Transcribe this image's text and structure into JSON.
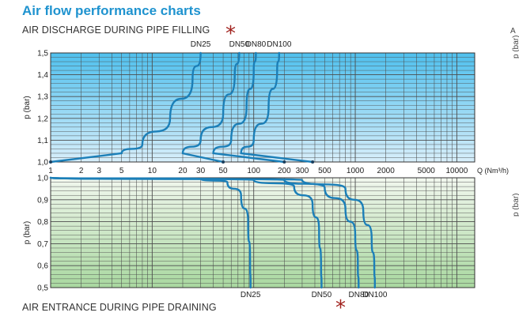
{
  "page": {
    "title": "Air flow performance charts",
    "top_subtitle": "AIR DISCHARGE DURING PIPE FILLING",
    "bottom_subtitle": "AIR ENTRANCE DURING PIPE DRAINING",
    "star_glyph": "*",
    "right_cut_a": "A",
    "right_cut_p_top": "p (bar)",
    "right_cut_p_bottom": "p (bar)"
  },
  "colors": {
    "title": "#1f93cf",
    "curve": "#1b7fb8",
    "star": "#a1231f",
    "grid": "#4d4d4d"
  },
  "chart_data": [
    {
      "type": "line",
      "title": "AIR DISCHARGE DURING PIPE FILLING",
      "ylabel": "p (bar)",
      "xlabel": "Q (Nm³/h)",
      "xscale": "log",
      "xlim": [
        1,
        15000
      ],
      "ylim": [
        1.0,
        1.5
      ],
      "xticks": [
        {
          "value": 1,
          "label": "1"
        },
        {
          "value": 2,
          "label": "2"
        },
        {
          "value": 3,
          "label": "3"
        },
        {
          "value": 5,
          "label": "5"
        },
        {
          "value": 10,
          "label": "10"
        },
        {
          "value": 20,
          "label": "20"
        },
        {
          "value": 30,
          "label": "30"
        },
        {
          "value": 50,
          "label": "50"
        },
        {
          "value": 100,
          "label": "100"
        },
        {
          "value": 200,
          "label": "200"
        },
        {
          "value": 300,
          "label": "300"
        },
        {
          "value": 500,
          "label": "500"
        },
        {
          "value": 1000,
          "label": "1000"
        },
        {
          "value": 2000,
          "label": "2000"
        },
        {
          "value": 5000,
          "label": "5000"
        },
        {
          "value": 10000,
          "label": "10000"
        }
      ],
      "x_unit_label": "Q (Nm³/h)",
      "yticks": [
        "1,0",
        "1,1",
        "1,2",
        "1,3",
        "1,4",
        "1,5"
      ],
      "ytick_values": [
        1.0,
        1.1,
        1.2,
        1.3,
        1.4,
        1.5
      ],
      "series": [
        {
          "name": "DN25",
          "x": [
            1,
            5,
            8,
            15,
            25,
            30
          ],
          "y": [
            1.0,
            1.04,
            1.08,
            1.2,
            1.38,
            1.5
          ]
        },
        {
          "name": "DN50",
          "x": [
            50,
            20,
            30,
            50,
            65,
            72
          ],
          "y": [
            1.0,
            1.04,
            1.1,
            1.22,
            1.4,
            1.5
          ]
        },
        {
          "name": "DN80",
          "x": [
            200,
            40,
            60,
            85,
            100,
            105
          ],
          "y": [
            1.0,
            1.04,
            1.1,
            1.25,
            1.42,
            1.5
          ]
        },
        {
          "name": "DN100",
          "x": [
            380,
            75,
            100,
            140,
            170,
            178
          ],
          "y": [
            1.0,
            1.04,
            1.1,
            1.25,
            1.42,
            1.5
          ]
        }
      ],
      "star_on": "DN50"
    },
    {
      "type": "line",
      "title": "AIR ENTRANCE DURING PIPE DRAINING",
      "ylabel": "p (bar)",
      "xscale": "log",
      "xlim": [
        1,
        15000
      ],
      "ylim": [
        0.5,
        1.0
      ],
      "yticks": [
        "0,5",
        "0,6",
        "0,7",
        "0,8",
        "0,9",
        "1,0"
      ],
      "ytick_values": [
        0.5,
        0.6,
        0.7,
        0.8,
        0.9,
        1.0
      ],
      "series": [
        {
          "name": "DN25",
          "x": [
            1,
            30,
            55,
            75,
            88,
            92,
            93
          ],
          "y": [
            1.0,
            0.995,
            0.98,
            0.92,
            0.8,
            0.62,
            0.5
          ]
        },
        {
          "name": "DN50",
          "x": [
            1,
            100,
            250,
            380,
            440,
            460,
            465
          ],
          "y": [
            1.0,
            0.99,
            0.96,
            0.88,
            0.76,
            0.6,
            0.5
          ]
        },
        {
          "name": "DN80",
          "x": [
            1,
            200,
            500,
            800,
            1000,
            1060,
            1080
          ],
          "y": [
            1.0,
            0.99,
            0.955,
            0.86,
            0.74,
            0.6,
            0.5
          ]
        },
        {
          "name": "DN100",
          "x": [
            1,
            300,
            800,
            1200,
            1450,
            1540,
            1560
          ],
          "y": [
            1.0,
            0.99,
            0.95,
            0.85,
            0.72,
            0.6,
            0.5
          ]
        }
      ],
      "star_on": "DN50"
    }
  ]
}
